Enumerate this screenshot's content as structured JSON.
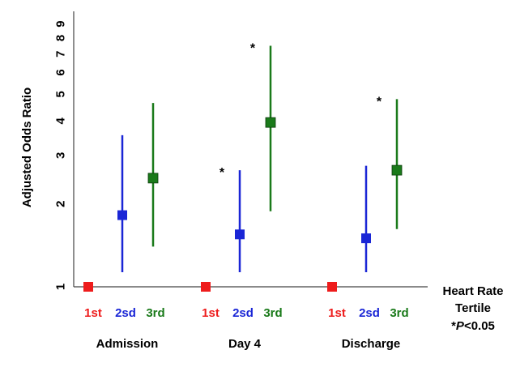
{
  "chart_data": {
    "type": "scatter",
    "ylabel": "Adjusted Odds Ratio",
    "y_ticks": [
      "1",
      "2",
      "3",
      "4",
      "5",
      "6",
      "7",
      "8",
      "9"
    ],
    "y_scale": "log",
    "ylim": [
      1,
      10
    ],
    "groups": [
      "Admission",
      "Day 4",
      "Discharge"
    ],
    "tertiles": [
      {
        "label": "1st",
        "color": "#ee1c1c"
      },
      {
        "label": "2sd",
        "color": "#1a26d6"
      },
      {
        "label": "3rd",
        "color": "#1a7a1a"
      }
    ],
    "points": [
      {
        "group": "Admission",
        "tertile": "1st",
        "or": 1.0,
        "lo": 1.0,
        "hi": 1.0,
        "sig": false
      },
      {
        "group": "Admission",
        "tertile": "2sd",
        "or": 1.82,
        "lo": 1.13,
        "hi": 3.55,
        "sig": false
      },
      {
        "group": "Admission",
        "tertile": "3rd",
        "or": 2.48,
        "lo": 1.4,
        "hi": 4.65,
        "sig": false
      },
      {
        "group": "Day 4",
        "tertile": "1st",
        "or": 1.0,
        "lo": 1.0,
        "hi": 1.0,
        "sig": false
      },
      {
        "group": "Day 4",
        "tertile": "2sd",
        "or": 1.55,
        "lo": 1.13,
        "hi": 2.65,
        "sig": true
      },
      {
        "group": "Day 4",
        "tertile": "3rd",
        "or": 3.95,
        "lo": 1.88,
        "hi": 7.5,
        "sig": true
      },
      {
        "group": "Discharge",
        "tertile": "1st",
        "or": 1.0,
        "lo": 1.0,
        "hi": 1.0,
        "sig": false
      },
      {
        "group": "Discharge",
        "tertile": "2sd",
        "or": 1.5,
        "lo": 1.13,
        "hi": 2.75,
        "sig": false
      },
      {
        "group": "Discharge",
        "tertile": "3rd",
        "or": 2.65,
        "lo": 1.62,
        "hi": 4.8,
        "sig": true
      }
    ],
    "significance_marker": "*",
    "legend": {
      "title_line1": "Heart Rate",
      "title_line2": "Tertile",
      "note_star": "*",
      "note_p": "P",
      "note_rest": "<0.05"
    }
  }
}
